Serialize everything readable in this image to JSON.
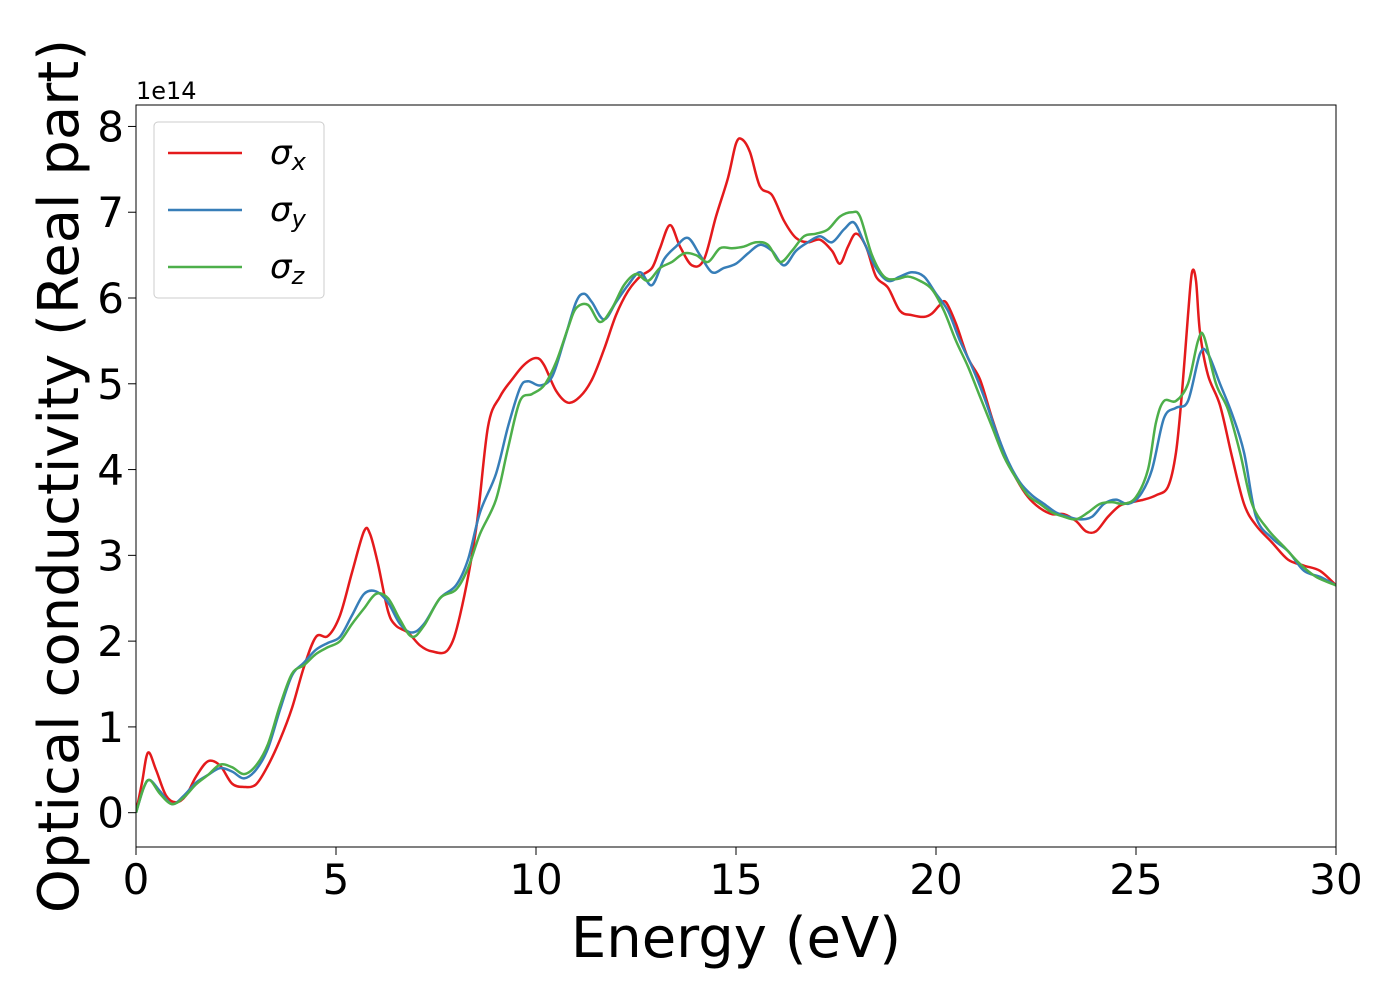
{
  "chart_data": {
    "type": "line",
    "xlabel": "Energy (eV)",
    "ylabel": "Optical conductivity (Real part)",
    "y_multiplier_label": "1e14",
    "xlim": [
      0,
      30
    ],
    "ylim": [
      -0.4,
      8.25
    ],
    "xticks": [
      0,
      5,
      10,
      15,
      20,
      25,
      30
    ],
    "yticks": [
      0,
      1,
      2,
      3,
      4,
      5,
      6,
      7,
      8
    ],
    "grid": false,
    "legend_position": "top-left",
    "series": [
      {
        "name": "σx",
        "symbol": "σ",
        "subscript": "x",
        "color": "#e41a1c",
        "points": [
          [
            0,
            0
          ],
          [
            0.15,
            0.35
          ],
          [
            0.3,
            0.7
          ],
          [
            0.5,
            0.5
          ],
          [
            0.75,
            0.2
          ],
          [
            1.0,
            0.12
          ],
          [
            1.25,
            0.2
          ],
          [
            1.5,
            0.42
          ],
          [
            1.8,
            0.6
          ],
          [
            2.1,
            0.55
          ],
          [
            2.4,
            0.34
          ],
          [
            2.7,
            0.3
          ],
          [
            3.0,
            0.33
          ],
          [
            3.3,
            0.55
          ],
          [
            3.6,
            0.85
          ],
          [
            3.9,
            1.22
          ],
          [
            4.2,
            1.7
          ],
          [
            4.5,
            2.05
          ],
          [
            4.8,
            2.06
          ],
          [
            5.1,
            2.3
          ],
          [
            5.4,
            2.8
          ],
          [
            5.7,
            3.28
          ],
          [
            5.85,
            3.25
          ],
          [
            6.05,
            2.9
          ],
          [
            6.3,
            2.35
          ],
          [
            6.5,
            2.18
          ],
          [
            6.8,
            2.1
          ],
          [
            7.1,
            1.95
          ],
          [
            7.4,
            1.88
          ],
          [
            7.8,
            1.9
          ],
          [
            8.1,
            2.3
          ],
          [
            8.5,
            3.3
          ],
          [
            8.8,
            4.5
          ],
          [
            9.1,
            4.85
          ],
          [
            9.4,
            5.05
          ],
          [
            9.7,
            5.22
          ],
          [
            10.0,
            5.3
          ],
          [
            10.2,
            5.22
          ],
          [
            10.5,
            4.92
          ],
          [
            10.8,
            4.78
          ],
          [
            11.1,
            4.85
          ],
          [
            11.4,
            5.05
          ],
          [
            11.7,
            5.4
          ],
          [
            12.0,
            5.8
          ],
          [
            12.3,
            6.08
          ],
          [
            12.6,
            6.25
          ],
          [
            12.9,
            6.35
          ],
          [
            13.1,
            6.58
          ],
          [
            13.35,
            6.85
          ],
          [
            13.6,
            6.6
          ],
          [
            13.9,
            6.38
          ],
          [
            14.2,
            6.45
          ],
          [
            14.5,
            6.95
          ],
          [
            14.8,
            7.4
          ],
          [
            15.0,
            7.8
          ],
          [
            15.15,
            7.85
          ],
          [
            15.35,
            7.7
          ],
          [
            15.6,
            7.3
          ],
          [
            15.9,
            7.2
          ],
          [
            16.2,
            6.9
          ],
          [
            16.5,
            6.7
          ],
          [
            16.8,
            6.65
          ],
          [
            17.1,
            6.68
          ],
          [
            17.4,
            6.55
          ],
          [
            17.6,
            6.4
          ],
          [
            17.8,
            6.6
          ],
          [
            18.0,
            6.75
          ],
          [
            18.25,
            6.6
          ],
          [
            18.5,
            6.25
          ],
          [
            18.8,
            6.12
          ],
          [
            19.1,
            5.85
          ],
          [
            19.4,
            5.8
          ],
          [
            19.7,
            5.78
          ],
          [
            19.9,
            5.82
          ],
          [
            20.1,
            5.92
          ],
          [
            20.25,
            5.95
          ],
          [
            20.5,
            5.7
          ],
          [
            20.8,
            5.3
          ],
          [
            21.1,
            5.05
          ],
          [
            21.4,
            4.6
          ],
          [
            21.7,
            4.2
          ],
          [
            22.0,
            3.9
          ],
          [
            22.3,
            3.68
          ],
          [
            22.6,
            3.55
          ],
          [
            22.9,
            3.48
          ],
          [
            23.2,
            3.48
          ],
          [
            23.5,
            3.4
          ],
          [
            23.75,
            3.28
          ],
          [
            24.0,
            3.28
          ],
          [
            24.3,
            3.45
          ],
          [
            24.6,
            3.58
          ],
          [
            24.9,
            3.62
          ],
          [
            25.2,
            3.65
          ],
          [
            25.5,
            3.7
          ],
          [
            25.8,
            3.8
          ],
          [
            26.0,
            4.2
          ],
          [
            26.15,
            4.9
          ],
          [
            26.3,
            5.8
          ],
          [
            26.4,
            6.3
          ],
          [
            26.5,
            6.2
          ],
          [
            26.6,
            5.6
          ],
          [
            26.8,
            5.1
          ],
          [
            27.1,
            4.75
          ],
          [
            27.4,
            4.15
          ],
          [
            27.7,
            3.6
          ],
          [
            28.0,
            3.35
          ],
          [
            28.4,
            3.15
          ],
          [
            28.8,
            2.95
          ],
          [
            29.2,
            2.88
          ],
          [
            29.6,
            2.82
          ],
          [
            30.0,
            2.65
          ]
        ]
      },
      {
        "name": "σy",
        "symbol": "σ",
        "subscript": "y",
        "color": "#377eb8",
        "points": [
          [
            0,
            0
          ],
          [
            0.2,
            0.3
          ],
          [
            0.35,
            0.38
          ],
          [
            0.6,
            0.25
          ],
          [
            0.9,
            0.1
          ],
          [
            1.2,
            0.2
          ],
          [
            1.5,
            0.35
          ],
          [
            1.8,
            0.44
          ],
          [
            2.1,
            0.52
          ],
          [
            2.4,
            0.48
          ],
          [
            2.7,
            0.4
          ],
          [
            3.0,
            0.5
          ],
          [
            3.3,
            0.75
          ],
          [
            3.6,
            1.2
          ],
          [
            3.9,
            1.6
          ],
          [
            4.2,
            1.75
          ],
          [
            4.5,
            1.9
          ],
          [
            4.8,
            1.98
          ],
          [
            5.1,
            2.05
          ],
          [
            5.4,
            2.3
          ],
          [
            5.7,
            2.55
          ],
          [
            6.0,
            2.58
          ],
          [
            6.3,
            2.45
          ],
          [
            6.6,
            2.2
          ],
          [
            6.9,
            2.1
          ],
          [
            7.2,
            2.2
          ],
          [
            7.6,
            2.5
          ],
          [
            8.0,
            2.65
          ],
          [
            8.3,
            2.95
          ],
          [
            8.6,
            3.5
          ],
          [
            9.0,
            3.95
          ],
          [
            9.3,
            4.5
          ],
          [
            9.6,
            4.95
          ],
          [
            9.8,
            5.03
          ],
          [
            10.1,
            4.98
          ],
          [
            10.4,
            5.08
          ],
          [
            10.7,
            5.5
          ],
          [
            11.0,
            5.95
          ],
          [
            11.2,
            6.05
          ],
          [
            11.4,
            5.95
          ],
          [
            11.7,
            5.75
          ],
          [
            12.0,
            5.95
          ],
          [
            12.3,
            6.15
          ],
          [
            12.6,
            6.3
          ],
          [
            12.9,
            6.15
          ],
          [
            13.2,
            6.45
          ],
          [
            13.5,
            6.6
          ],
          [
            13.8,
            6.7
          ],
          [
            14.1,
            6.5
          ],
          [
            14.4,
            6.3
          ],
          [
            14.7,
            6.35
          ],
          [
            15.0,
            6.4
          ],
          [
            15.3,
            6.52
          ],
          [
            15.6,
            6.62
          ],
          [
            15.9,
            6.55
          ],
          [
            16.2,
            6.38
          ],
          [
            16.5,
            6.55
          ],
          [
            16.8,
            6.65
          ],
          [
            17.1,
            6.72
          ],
          [
            17.4,
            6.65
          ],
          [
            17.7,
            6.8
          ],
          [
            17.95,
            6.88
          ],
          [
            18.2,
            6.65
          ],
          [
            18.5,
            6.35
          ],
          [
            18.8,
            6.2
          ],
          [
            19.1,
            6.25
          ],
          [
            19.4,
            6.3
          ],
          [
            19.7,
            6.25
          ],
          [
            20.0,
            6.05
          ],
          [
            20.3,
            5.85
          ],
          [
            20.6,
            5.5
          ],
          [
            20.9,
            5.2
          ],
          [
            21.2,
            4.85
          ],
          [
            21.5,
            4.45
          ],
          [
            21.8,
            4.1
          ],
          [
            22.1,
            3.85
          ],
          [
            22.4,
            3.7
          ],
          [
            22.7,
            3.6
          ],
          [
            23.0,
            3.5
          ],
          [
            23.3,
            3.45
          ],
          [
            23.6,
            3.42
          ],
          [
            23.9,
            3.45
          ],
          [
            24.2,
            3.6
          ],
          [
            24.5,
            3.65
          ],
          [
            24.8,
            3.6
          ],
          [
            25.1,
            3.7
          ],
          [
            25.4,
            4.0
          ],
          [
            25.7,
            4.6
          ],
          [
            26.0,
            4.72
          ],
          [
            26.3,
            4.8
          ],
          [
            26.6,
            5.35
          ],
          [
            26.8,
            5.35
          ],
          [
            27.1,
            5.0
          ],
          [
            27.4,
            4.65
          ],
          [
            27.7,
            4.2
          ],
          [
            28.0,
            3.45
          ],
          [
            28.4,
            3.2
          ],
          [
            28.8,
            3.05
          ],
          [
            29.2,
            2.82
          ],
          [
            29.6,
            2.75
          ],
          [
            30.0,
            2.65
          ]
        ]
      },
      {
        "name": "σz",
        "symbol": "σ",
        "subscript": "z",
        "color": "#4daf4a",
        "points": [
          [
            0,
            0
          ],
          [
            0.2,
            0.3
          ],
          [
            0.35,
            0.38
          ],
          [
            0.6,
            0.22
          ],
          [
            0.9,
            0.1
          ],
          [
            1.2,
            0.18
          ],
          [
            1.5,
            0.33
          ],
          [
            1.8,
            0.44
          ],
          [
            2.1,
            0.56
          ],
          [
            2.4,
            0.53
          ],
          [
            2.7,
            0.45
          ],
          [
            3.0,
            0.55
          ],
          [
            3.3,
            0.8
          ],
          [
            3.6,
            1.25
          ],
          [
            3.9,
            1.62
          ],
          [
            4.2,
            1.72
          ],
          [
            4.5,
            1.85
          ],
          [
            4.8,
            1.93
          ],
          [
            5.1,
            2.0
          ],
          [
            5.4,
            2.2
          ],
          [
            5.7,
            2.38
          ],
          [
            6.0,
            2.55
          ],
          [
            6.3,
            2.5
          ],
          [
            6.6,
            2.25
          ],
          [
            6.9,
            2.05
          ],
          [
            7.2,
            2.18
          ],
          [
            7.6,
            2.5
          ],
          [
            8.0,
            2.6
          ],
          [
            8.3,
            2.85
          ],
          [
            8.6,
            3.25
          ],
          [
            9.0,
            3.65
          ],
          [
            9.3,
            4.25
          ],
          [
            9.6,
            4.8
          ],
          [
            9.9,
            4.88
          ],
          [
            10.2,
            4.98
          ],
          [
            10.5,
            5.25
          ],
          [
            10.8,
            5.65
          ],
          [
            11.0,
            5.88
          ],
          [
            11.3,
            5.92
          ],
          [
            11.6,
            5.72
          ],
          [
            11.9,
            5.88
          ],
          [
            12.2,
            6.15
          ],
          [
            12.5,
            6.28
          ],
          [
            12.8,
            6.2
          ],
          [
            13.1,
            6.35
          ],
          [
            13.4,
            6.42
          ],
          [
            13.7,
            6.52
          ],
          [
            14.0,
            6.5
          ],
          [
            14.3,
            6.42
          ],
          [
            14.6,
            6.58
          ],
          [
            14.9,
            6.58
          ],
          [
            15.2,
            6.6
          ],
          [
            15.5,
            6.65
          ],
          [
            15.8,
            6.62
          ],
          [
            16.1,
            6.42
          ],
          [
            16.4,
            6.55
          ],
          [
            16.7,
            6.72
          ],
          [
            17.0,
            6.75
          ],
          [
            17.3,
            6.8
          ],
          [
            17.6,
            6.95
          ],
          [
            17.9,
            7.0
          ],
          [
            18.1,
            6.95
          ],
          [
            18.4,
            6.5
          ],
          [
            18.7,
            6.25
          ],
          [
            19.0,
            6.22
          ],
          [
            19.3,
            6.25
          ],
          [
            19.6,
            6.2
          ],
          [
            19.9,
            6.1
          ],
          [
            20.2,
            5.85
          ],
          [
            20.5,
            5.5
          ],
          [
            20.8,
            5.2
          ],
          [
            21.1,
            4.85
          ],
          [
            21.4,
            4.5
          ],
          [
            21.7,
            4.15
          ],
          [
            22.0,
            3.9
          ],
          [
            22.3,
            3.7
          ],
          [
            22.6,
            3.6
          ],
          [
            22.9,
            3.5
          ],
          [
            23.2,
            3.45
          ],
          [
            23.5,
            3.42
          ],
          [
            23.8,
            3.5
          ],
          [
            24.1,
            3.6
          ],
          [
            24.4,
            3.62
          ],
          [
            24.7,
            3.6
          ],
          [
            25.0,
            3.68
          ],
          [
            25.3,
            4.0
          ],
          [
            25.5,
            4.55
          ],
          [
            25.7,
            4.8
          ],
          [
            26.0,
            4.8
          ],
          [
            26.3,
            5.0
          ],
          [
            26.55,
            5.5
          ],
          [
            26.7,
            5.55
          ],
          [
            27.0,
            5.0
          ],
          [
            27.3,
            4.7
          ],
          [
            27.6,
            4.2
          ],
          [
            27.9,
            3.6
          ],
          [
            28.3,
            3.3
          ],
          [
            28.7,
            3.1
          ],
          [
            29.1,
            2.9
          ],
          [
            29.5,
            2.75
          ],
          [
            30.0,
            2.65
          ]
        ]
      }
    ]
  }
}
